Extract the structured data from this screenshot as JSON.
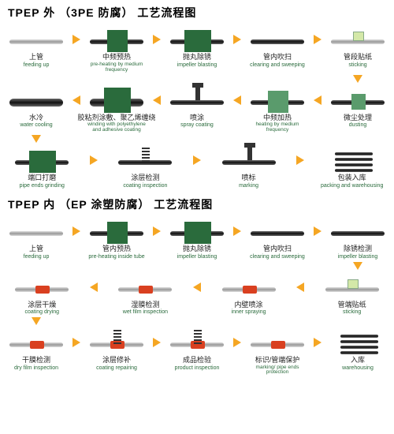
{
  "colors": {
    "arrow": "#f5a623",
    "green": "#2a6b3c",
    "green_light": "#5a9b6c",
    "label_en": "#2a6b3c",
    "red": "#d94020",
    "bg": "#ffffff"
  },
  "sections": [
    {
      "title": "TPEP 外  （3PE 防腐）  工艺流程图",
      "rows": [
        {
          "direction": "right",
          "steps": [
            {
              "icon": "pipe-plain",
              "zh": "上管",
              "en": "feeding up"
            },
            {
              "icon": "green-box",
              "zh": "中频预热",
              "en": "pre-heating by medium frequency"
            },
            {
              "icon": "green-box-wide",
              "zh": "抛丸除锈",
              "en": "impeller blasting"
            },
            {
              "icon": "pipe-black",
              "zh": "管内吹扫",
              "en": "clearing and sweeping"
            },
            {
              "icon": "sticker",
              "zh": "管段贴纸",
              "en": "sticking"
            }
          ]
        },
        {
          "direction": "left",
          "steps": [
            {
              "icon": "pipe-thick",
              "zh": "水冷",
              "en": "water cooling"
            },
            {
              "icon": "green-box-tall",
              "zh": "胶粘剂涂敷、聚乙烯缠绕",
              "en": "winding with polyethylene and adhesive coating"
            },
            {
              "icon": "spray",
              "zh": "喷涂",
              "en": "spray coating"
            },
            {
              "icon": "green-box-light",
              "zh": "中频加热",
              "en": "heating by medium frequency"
            },
            {
              "icon": "green-small",
              "zh": "微尘处理",
              "en": "dusting"
            }
          ]
        },
        {
          "direction": "right",
          "steps": [
            {
              "icon": "green-box-wide",
              "zh": "端口打磨",
              "en": "pipe ends grinding"
            },
            {
              "icon": "spring",
              "zh": "涂层检测",
              "en": "coating inspection"
            },
            {
              "icon": "spray",
              "zh": "喷标",
              "en": "marking"
            },
            {
              "icon": "stack",
              "zh": "包装入库",
              "en": "packing and warehousing"
            }
          ]
        }
      ]
    },
    {
      "title": "TPEP 内  （EP 涂塑防腐）  工艺流程图",
      "rows": [
        {
          "direction": "right",
          "steps": [
            {
              "icon": "pipe-plain",
              "zh": "上管",
              "en": "feeding up"
            },
            {
              "icon": "green-box",
              "zh": "管内预热",
              "en": "pre-heating inside tube"
            },
            {
              "icon": "green-box-wide",
              "zh": "抛丸除锈",
              "en": "impeller blasting"
            },
            {
              "icon": "pipe-black",
              "zh": "管内吹扫",
              "en": "clearing and sweeping"
            },
            {
              "icon": "pipe-black",
              "zh": "除锈检测",
              "en": "impeller blasting"
            }
          ]
        },
        {
          "direction": "left",
          "steps": [
            {
              "icon": "red-band",
              "zh": "涂层干燥",
              "en": "coating drying"
            },
            {
              "icon": "red-band",
              "zh": "湿膜检测",
              "en": "wet film inspection"
            },
            {
              "icon": "red-band",
              "zh": "内壁喷涂",
              "en": "inner spraying"
            },
            {
              "icon": "sticker",
              "zh": "管端贴纸",
              "en": "sticking"
            }
          ]
        },
        {
          "direction": "right",
          "steps": [
            {
              "icon": "red-band",
              "zh": "干膜检测",
              "en": "dry film inspection"
            },
            {
              "icon": "spring-red",
              "zh": "涂层修补",
              "en": "coating repairing"
            },
            {
              "icon": "spring-red",
              "zh": "成品检验",
              "en": "product inspection"
            },
            {
              "icon": "red-band",
              "zh": "标识/管端保护",
              "en": "marking/ pipe ends protection"
            },
            {
              "icon": "stack",
              "zh": "入库",
              "en": "warehousing"
            }
          ]
        }
      ]
    }
  ]
}
